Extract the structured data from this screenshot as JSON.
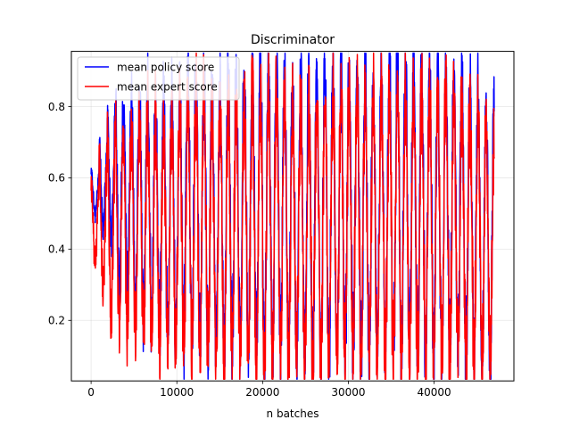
{
  "chart_data": {
    "type": "line",
    "title": "Discriminator",
    "xlabel": "n batches",
    "ylabel": "",
    "xlim": [
      -2300,
      49300
    ],
    "ylim": [
      0.03,
      0.955
    ],
    "xticks": [
      0,
      10000,
      20000,
      30000,
      40000
    ],
    "xtick_labels": [
      "0",
      "10000",
      "20000",
      "30000",
      "40000"
    ],
    "yticks": [
      0.2,
      0.4,
      0.6,
      0.8
    ],
    "ytick_labels": [
      "0.2",
      "0.4",
      "0.6",
      "0.8"
    ],
    "grid": true,
    "legend_position": "upper-left",
    "x_range": [
      0,
      47000
    ],
    "n_cycles": 50,
    "series": [
      {
        "name": "mean policy score",
        "color": "#0000ff",
        "peaks": [
          0.62,
          0.7,
          0.78,
          0.8,
          0.8,
          0.8,
          0.82,
          0.84,
          0.82,
          0.82,
          0.84,
          0.86,
          0.88,
          0.9,
          0.85,
          0.85,
          0.85,
          0.88,
          0.88,
          0.9,
          0.9,
          0.9,
          0.9,
          0.9,
          0.88,
          0.85,
          0.85,
          0.88,
          0.88,
          0.9,
          0.9,
          0.9,
          0.9,
          0.9,
          0.88,
          0.88,
          0.9,
          0.92,
          0.92,
          0.9,
          0.9,
          0.9,
          0.88,
          0.9,
          0.9,
          0.88,
          0.86,
          0.85,
          0.82,
          0.8
        ],
        "troughs": [
          0.5,
          0.45,
          0.43,
          0.3,
          0.28,
          0.25,
          0.22,
          0.2,
          0.18,
          0.18,
          0.17,
          0.16,
          0.15,
          0.15,
          0.14,
          0.13,
          0.13,
          0.12,
          0.12,
          0.11,
          0.11,
          0.11,
          0.1,
          0.11,
          0.11,
          0.11,
          0.1,
          0.1,
          0.1,
          0.1,
          0.1,
          0.1,
          0.11,
          0.11,
          0.1,
          0.11,
          0.11,
          0.1,
          0.1,
          0.11,
          0.11,
          0.1,
          0.11,
          0.11,
          0.11,
          0.11,
          0.11,
          0.1,
          0.1,
          0.09
        ]
      },
      {
        "name": "mean expert score",
        "color": "#ff0000",
        "peaks": [
          0.58,
          0.65,
          0.72,
          0.76,
          0.72,
          0.74,
          0.76,
          0.78,
          0.76,
          0.76,
          0.78,
          0.8,
          0.82,
          0.84,
          0.8,
          0.78,
          0.8,
          0.82,
          0.82,
          0.85,
          0.85,
          0.84,
          0.84,
          0.84,
          0.82,
          0.8,
          0.8,
          0.82,
          0.82,
          0.84,
          0.84,
          0.84,
          0.84,
          0.84,
          0.82,
          0.82,
          0.84,
          0.85,
          0.85,
          0.84,
          0.84,
          0.84,
          0.82,
          0.84,
          0.84,
          0.82,
          0.8,
          0.8,
          0.76,
          0.72
        ],
        "troughs": [
          0.36,
          0.28,
          0.2,
          0.18,
          0.17,
          0.16,
          0.15,
          0.14,
          0.14,
          0.13,
          0.13,
          0.12,
          0.12,
          0.11,
          0.11,
          0.1,
          0.1,
          0.1,
          0.09,
          0.08,
          0.08,
          0.09,
          0.09,
          0.09,
          0.09,
          0.09,
          0.09,
          0.09,
          0.09,
          0.09,
          0.09,
          0.09,
          0.09,
          0.09,
          0.09,
          0.09,
          0.09,
          0.09,
          0.09,
          0.09,
          0.09,
          0.09,
          0.09,
          0.09,
          0.09,
          0.09,
          0.09,
          0.09,
          0.09,
          0.09
        ]
      }
    ]
  }
}
